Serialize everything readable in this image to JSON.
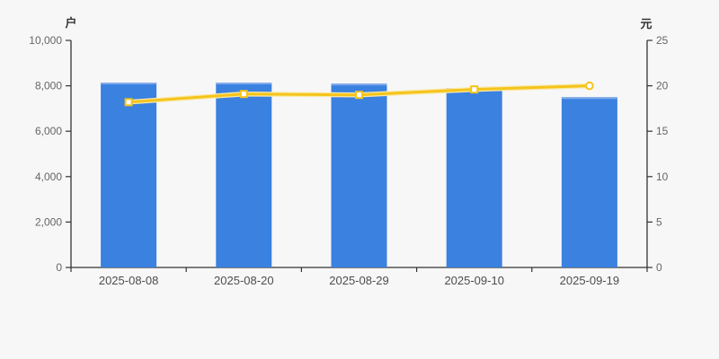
{
  "chart_data": {
    "type": "bar",
    "title": "",
    "categories": [
      "2025-08-08",
      "2025-08-20",
      "2025-08-29",
      "2025-09-10",
      "2025-09-19"
    ],
    "series": [
      {
        "name": "bar-series",
        "type": "bar",
        "axis": "left",
        "values": [
          8140,
          8140,
          8100,
          7900,
          7500
        ]
      },
      {
        "name": "line-series",
        "type": "line",
        "axis": "right",
        "values": [
          18.2,
          19.1,
          19.0,
          19.6,
          20.0
        ],
        "last_marker": "hollow-circle"
      }
    ],
    "left_axis": {
      "name": "户",
      "min": 0,
      "max": 10000,
      "tick_interval": 2000,
      "tick_labels": [
        "0",
        "2,000",
        "4,000",
        "6,000",
        "8,000",
        "10,000"
      ]
    },
    "right_axis": {
      "name": "元",
      "min": 0,
      "max": 25,
      "tick_interval": 5,
      "tick_labels": [
        "0",
        "5",
        "10",
        "15",
        "20",
        "25"
      ]
    },
    "grid": false,
    "legend": false
  },
  "colors": {
    "background": "#f7f7f7",
    "bar_fill": "#3a81e0",
    "bar_top_highlight": "#84abe9",
    "line": "#f5c41a",
    "line_halo": "#f9e9ab",
    "marker_fill": "#ffffff",
    "axis_line": "#333333",
    "y_tick_text": "#666666",
    "x_tick_text": "#4d4d4d"
  }
}
